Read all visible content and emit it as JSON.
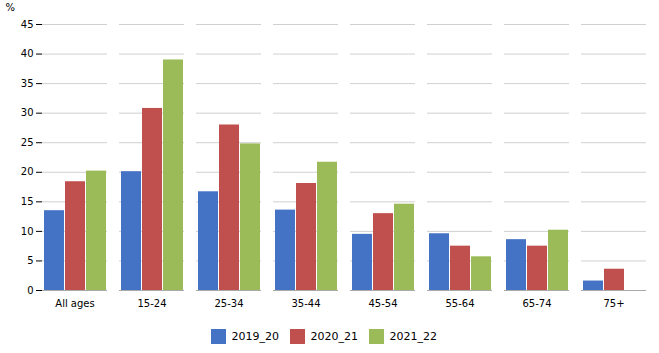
{
  "chart_data": {
    "type": "bar",
    "categories": [
      "All ages",
      "15-24",
      "25-34",
      "35-44",
      "45-54",
      "55-64",
      "65-74",
      "75+"
    ],
    "series": [
      {
        "name": "2019_20",
        "color": "#4472C4",
        "values": [
          13.5,
          20.1,
          16.7,
          13.6,
          9.5,
          9.6,
          8.6,
          1.6
        ]
      },
      {
        "name": "2020_21",
        "color": "#C0504D",
        "values": [
          18.4,
          30.8,
          28.0,
          18.1,
          13.0,
          7.5,
          7.5,
          3.6
        ]
      },
      {
        "name": "2021_22",
        "color": "#9BBB59",
        "values": [
          20.2,
          39.0,
          24.8,
          21.7,
          14.6,
          5.7,
          10.2,
          0.0
        ]
      }
    ],
    "ylabel": "%",
    "ylim": [
      0,
      45
    ],
    "yticks": [
      0,
      5,
      10,
      15,
      20,
      25,
      30,
      35,
      40,
      45
    ],
    "grid": true,
    "legend": "bottom"
  }
}
